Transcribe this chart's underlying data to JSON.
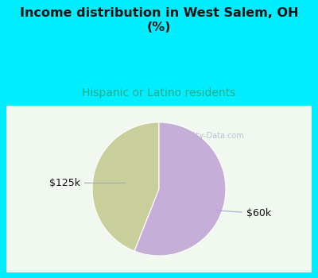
{
  "title": "Income distribution in West Salem, OH\n(%)",
  "subtitle": "Hispanic or Latino residents",
  "slices": [
    {
      "label": "$125k",
      "value": 44,
      "color": "#c8cf9a"
    },
    {
      "label": "$60k",
      "value": 56,
      "color": "#c5aed8"
    }
  ],
  "background_color": "#00eeff",
  "chart_bg_color": "#ffffff",
  "title_fontsize": 11.5,
  "subtitle_fontsize": 10,
  "subtitle_color": "#2aaa88",
  "title_color": "#111111",
  "watermark": "City-Data.com",
  "startangle": 90
}
